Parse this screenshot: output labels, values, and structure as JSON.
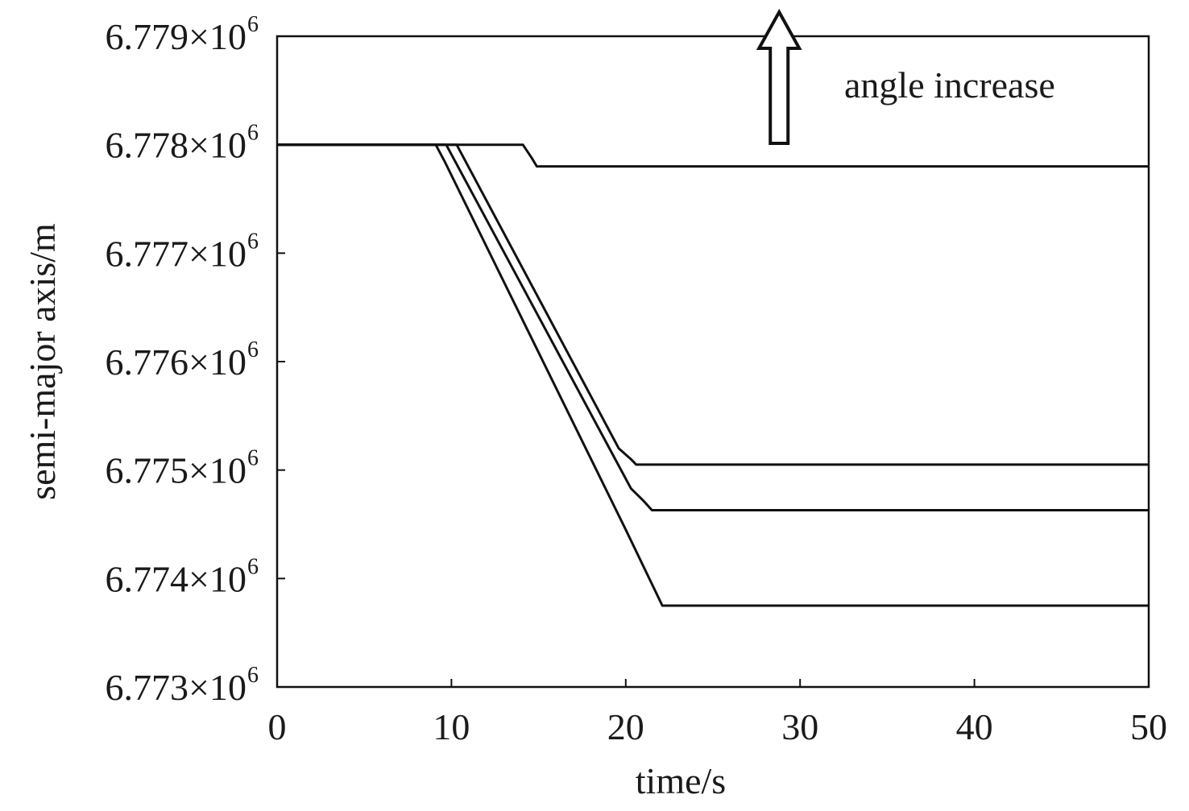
{
  "chart_data": {
    "type": "line",
    "title": "",
    "xlabel": "time/s",
    "ylabel": "semi-major axis/m",
    "xlim": [
      0,
      50
    ],
    "ylim": [
      6773000,
      6779000
    ],
    "x_ticks": [
      0,
      10,
      20,
      30,
      40,
      50
    ],
    "x_tick_labels": [
      "0",
      "10",
      "20",
      "30",
      "40",
      "50"
    ],
    "y_ticks": [
      6773000,
      6774000,
      6775000,
      6776000,
      6777000,
      6778000,
      6779000
    ],
    "y_tick_labels": [
      {
        "mantissa": "6.773×10",
        "exp": "6"
      },
      {
        "mantissa": "6.774×10",
        "exp": "6"
      },
      {
        "mantissa": "6.775×10",
        "exp": "6"
      },
      {
        "mantissa": "6.776×10",
        "exp": "6"
      },
      {
        "mantissa": "6.777×10",
        "exp": "6"
      },
      {
        "mantissa": "6.778×10",
        "exp": "6"
      },
      {
        "mantissa": "6.779×10",
        "exp": "6"
      }
    ],
    "grid": false,
    "line_color": "#111111",
    "series": [
      {
        "x": [
          0,
          14.1,
          14.6,
          14.9,
          50
        ],
        "y": [
          6778000,
          6778000,
          6777880,
          6777800,
          6777800
        ]
      },
      {
        "x": [
          0,
          10.3,
          19.6,
          20.3,
          20.6,
          50
        ],
        "y": [
          6778000,
          6778000,
          6775200,
          6775100,
          6775050,
          6775050
        ]
      },
      {
        "x": [
          0,
          9.7,
          20.3,
          21.0,
          21.5,
          50
        ],
        "y": [
          6778000,
          6778000,
          6774830,
          6774720,
          6774630,
          6774630
        ]
      },
      {
        "x": [
          0,
          9.1,
          9.6,
          20.0,
          22.1,
          50
        ],
        "y": [
          6778000,
          6778000,
          6777850,
          6774450,
          6773750,
          6773750
        ]
      }
    ],
    "annotations": [
      {
        "text": "angle increase",
        "arrow": "up-outline",
        "arrow_x": 28.8
      }
    ]
  }
}
